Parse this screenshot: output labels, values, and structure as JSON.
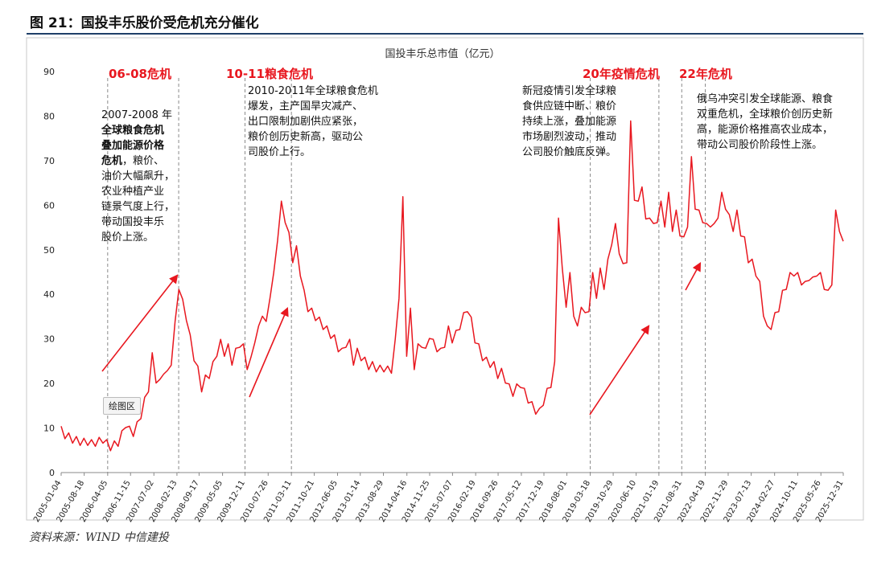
{
  "figure": {
    "title": "图 21：国投丰乐股价受危机充分催化",
    "source": "资料来源：WIND   中信建投",
    "tooltip": "绘图区",
    "accent_color": "#e8171f",
    "rule_color": "#1f3f68"
  },
  "crises": [
    {
      "label": "06-08危机",
      "start": "2006-04-05",
      "end": "2008-03-01"
    },
    {
      "label": "10-11粮食危机",
      "start": "2009-12-11",
      "end": "2011-03-11"
    },
    {
      "label": "20年疫情危机",
      "start": "2019-03-18",
      "end": "2021-01-19"
    },
    {
      "label": "22年危机",
      "start": "2021-08-31",
      "end": "2022-04-19"
    }
  ],
  "annotations": [
    {
      "id": "a1",
      "lines": [
        [
          {
            "t": "2007-2008 年"
          }
        ],
        [
          {
            "t": "全球粮食危机",
            "b": true
          }
        ],
        [
          {
            "t": "叠加能源价格",
            "b": true
          }
        ],
        [
          {
            "t": "危机",
            "b": true
          },
          {
            "t": "，粮价、"
          }
        ],
        [
          {
            "t": "油价大幅飙升，"
          }
        ],
        [
          {
            "t": "农业种植产业"
          }
        ],
        [
          {
            "t": "链景气度上行，"
          }
        ],
        [
          {
            "t": "带动国投丰乐"
          }
        ],
        [
          {
            "t": "股价上涨。"
          }
        ]
      ]
    },
    {
      "id": "a2",
      "lines": [
        [
          {
            "t": "2010-2011年全球粮食危机"
          }
        ],
        [
          {
            "t": "爆发，主产国旱灾减产、"
          }
        ],
        [
          {
            "t": "出口限制加剧供应紧张，"
          }
        ],
        [
          {
            "t": "粮价创历史新高，驱动公"
          }
        ],
        [
          {
            "t": "司股价上行。"
          }
        ]
      ]
    },
    {
      "id": "a3",
      "lines": [
        [
          {
            "t": "新冠疫情引发全球粮"
          }
        ],
        [
          {
            "t": "食供应链中断、粮价"
          }
        ],
        [
          {
            "t": "持续上涨，叠加能源"
          }
        ],
        [
          {
            "t": "市场剧烈波动，推动"
          }
        ],
        [
          {
            "t": "公司股价触底反弹。"
          }
        ]
      ]
    },
    {
      "id": "a4",
      "lines": [
        [
          {
            "t": "俄乌冲突引发全球能源、粮食"
          }
        ],
        [
          {
            "t": "双重危机，全球粮价创历史新"
          }
        ],
        [
          {
            "t": "高，能源价格推高农业成本，"
          }
        ],
        [
          {
            "t": "带动公司股价阶段性上涨。"
          }
        ]
      ]
    }
  ],
  "chart_data": {
    "type": "line",
    "title": "国投丰乐总市值（亿元）",
    "xlabel": "",
    "ylabel": "",
    "ylim": [
      0,
      90
    ],
    "yticks": [
      0,
      10,
      20,
      30,
      40,
      50,
      60,
      70,
      80,
      90
    ],
    "xticks": [
      "2005-01-04",
      "2005-08-18",
      "2006-04-05",
      "2006-11-15",
      "2007-07-02",
      "2008-02-13",
      "2008-09-17",
      "2009-05-05",
      "2009-12-11",
      "2010-07-26",
      "2011-03-11",
      "2011-10-21",
      "2012-06-05",
      "2013-01-14",
      "2013-08-29",
      "2014-04-16",
      "2014-11-25",
      "2015-07-07",
      "2016-02-19",
      "2016-09-26",
      "2017-05-12",
      "2017-12-19",
      "2018-08-01",
      "2019-03-18",
      "2019-10-29",
      "2020-06-10",
      "2021-01-19",
      "2021-08-31",
      "2022-04-19",
      "2022-11-29",
      "2023-07-13",
      "2024-02-27",
      "2024-10-11",
      "2025-05-26",
      "2025-12-31"
    ],
    "grid": false,
    "legend": "none",
    "series_color": "#e8171f",
    "series": [
      {
        "values": [
          9.5,
          8.5,
          8,
          7.5,
          7.2,
          7,
          6.8,
          7,
          6.5,
          6.8,
          7,
          7.5,
          6.5,
          5.8,
          6.2,
          6.8,
          8.5,
          11,
          9.5,
          9,
          10.5,
          13,
          16,
          19,
          26,
          21,
          20,
          23,
          22,
          25,
          33,
          42,
          38,
          35,
          30,
          26,
          23,
          19,
          21,
          22,
          24,
          27,
          29,
          27,
          28,
          25,
          27,
          29,
          28,
          24,
          25,
          30,
          32,
          36,
          33,
          40,
          44,
          53,
          60,
          57,
          53,
          48,
          50,
          45,
          40,
          37,
          36,
          35,
          34,
          33,
          32,
          31,
          30,
          28,
          27,
          29,
          29,
          25,
          27,
          26,
          25,
          24,
          24,
          23.5,
          23.2,
          23.5,
          23,
          23.2,
          29,
          40,
          61,
          27,
          36,
          24,
          28,
          29,
          27,
          31,
          29,
          28,
          27,
          29,
          32,
          30,
          31,
          33,
          35,
          37,
          34,
          30,
          28,
          26,
          25,
          24.5,
          24,
          22,
          22.5,
          21,
          19,
          18,
          19,
          20,
          18,
          16.5,
          15,
          14,
          13.5,
          16,
          18,
          20,
          24,
          58,
          45,
          38,
          44,
          36,
          32,
          38,
          35,
          37,
          44,
          40,
          45,
          42,
          47,
          52,
          55,
          50,
          46,
          48,
          78,
          62,
          60,
          65,
          56,
          58,
          55,
          57,
          60,
          56,
          62,
          55,
          58,
          54,
          52,
          56,
          70,
          60,
          58,
          57,
          55,
          56,
          55,
          58,
          62,
          60,
          57,
          55,
          58,
          54,
          52,
          48,
          47,
          45,
          42,
          36,
          32,
          33,
          35,
          37,
          40,
          42,
          44,
          45,
          44,
          43,
          42,
          44,
          43,
          45,
          44,
          42,
          40,
          43,
          58,
          55,
          51
        ]
      }
    ]
  }
}
